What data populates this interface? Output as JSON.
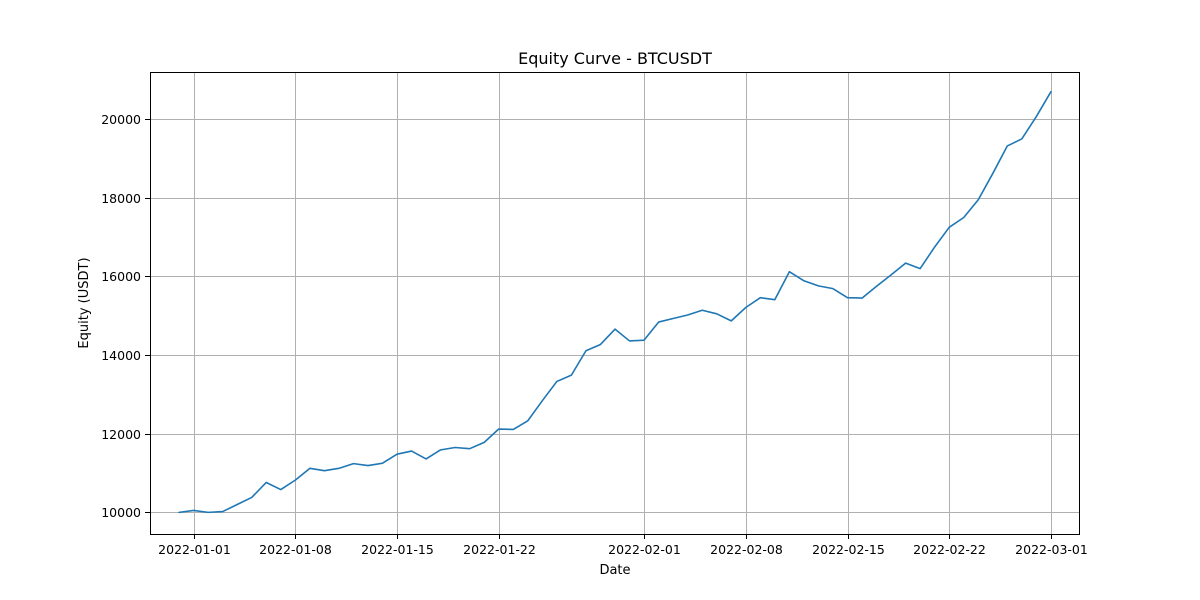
{
  "chart_data": {
    "type": "line",
    "title": "Equity Curve - BTCUSDT",
    "xlabel": "Date",
    "ylabel": "Equity (USDT)",
    "grid": true,
    "legend": "none",
    "xlim": [
      "2021-12-29",
      "2022-03-03"
    ],
    "ylim": [
      9450,
      21200
    ],
    "x_ticks": [
      "2022-01-01",
      "2022-01-08",
      "2022-01-15",
      "2022-01-22",
      "2022-02-01",
      "2022-02-08",
      "2022-02-15",
      "2022-02-22",
      "2022-03-01"
    ],
    "y_ticks": [
      10000,
      12000,
      14000,
      16000,
      18000,
      20000
    ],
    "colors": {
      "series": "#1f77b4",
      "grid": "#b0b0b0"
    },
    "series": [
      {
        "x": [
          "2021-12-31",
          "2022-01-01",
          "2022-01-02",
          "2022-01-03",
          "2022-01-04",
          "2022-01-05",
          "2022-01-06",
          "2022-01-07",
          "2022-01-08",
          "2022-01-09",
          "2022-01-10",
          "2022-01-11",
          "2022-01-12",
          "2022-01-13",
          "2022-01-14",
          "2022-01-15",
          "2022-01-16",
          "2022-01-17",
          "2022-01-18",
          "2022-01-19",
          "2022-01-20",
          "2022-01-21",
          "2022-01-22",
          "2022-01-23",
          "2022-01-24",
          "2022-01-25",
          "2022-01-26",
          "2022-01-27",
          "2022-01-28",
          "2022-01-29",
          "2022-01-30",
          "2022-01-31",
          "2022-02-01",
          "2022-02-02",
          "2022-02-03",
          "2022-02-04",
          "2022-02-05",
          "2022-02-06",
          "2022-02-07",
          "2022-02-08",
          "2022-02-09",
          "2022-02-10",
          "2022-02-11",
          "2022-02-12",
          "2022-02-13",
          "2022-02-14",
          "2022-02-15",
          "2022-02-16",
          "2022-02-17",
          "2022-02-18",
          "2022-02-19",
          "2022-02-20",
          "2022-02-21",
          "2022-02-22",
          "2022-02-23",
          "2022-02-24",
          "2022-02-25",
          "2022-02-26",
          "2022-02-27",
          "2022-02-28",
          "2022-03-01"
        ],
        "values": [
          10000,
          10050,
          10000,
          10020,
          10200,
          10380,
          10760,
          10580,
          10820,
          11120,
          11060,
          11120,
          11240,
          11190,
          11250,
          11480,
          11560,
          11360,
          11590,
          11650,
          11620,
          11780,
          12120,
          12110,
          12330,
          12840,
          13330,
          13490,
          14110,
          14270,
          14660,
          14360,
          14380,
          14840,
          14930,
          15020,
          15140,
          15050,
          14870,
          15210,
          15460,
          15410,
          16120,
          15890,
          15760,
          15690,
          15460,
          15450,
          15750,
          16040,
          16340,
          16200,
          16750,
          17250,
          17500,
          17950,
          18620,
          19320,
          19500,
          20070,
          20700
        ]
      }
    ]
  }
}
